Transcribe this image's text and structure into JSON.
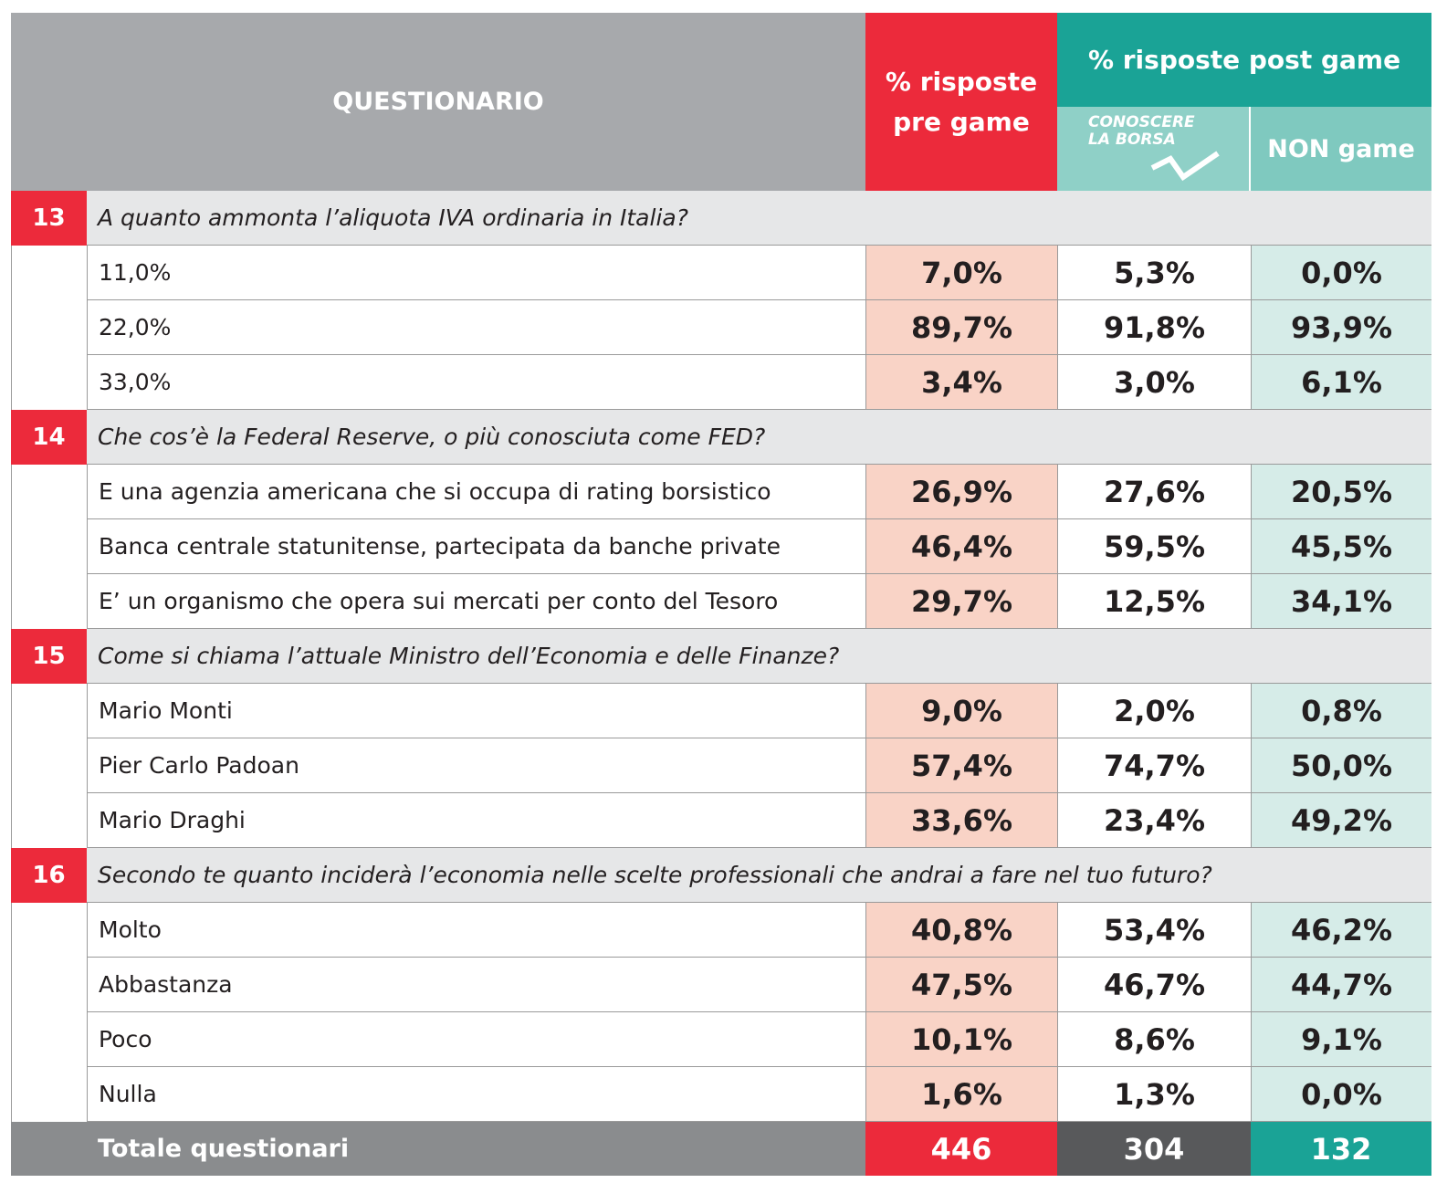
{
  "header": {
    "title": "QUESTIONARIO",
    "pre": "% risposte pre game",
    "post": "% risposte post game",
    "conoscere": [
      "CONOSCERE",
      "LA BORSA"
    ],
    "non": "NON game"
  },
  "questions": [
    {
      "number": "13",
      "text": "A quanto ammonta l’aliquota IVA ordinaria in Italia?",
      "answers": [
        {
          "label": "11,0%",
          "pre": "7,0%",
          "conoscere": "5,3%",
          "non": "0,0%"
        },
        {
          "label": "22,0%",
          "pre": "89,7%",
          "conoscere": "91,8%",
          "non": "93,9%"
        },
        {
          "label": "33,0%",
          "pre": "3,4%",
          "conoscere": "3,0%",
          "non": "6,1%"
        }
      ]
    },
    {
      "number": "14",
      "text": "Che cos’è la Federal Reserve, o più conosciuta come FED?",
      "answers": [
        {
          "label": "E una agenzia americana che si occupa di rating borsistico",
          "pre": "26,9%",
          "conoscere": "27,6%",
          "non": "20,5%"
        },
        {
          "label": "Banca centrale statunitense, partecipata da banche private",
          "pre": "46,4%",
          "conoscere": "59,5%",
          "non": "45,5%"
        },
        {
          "label": "E’ un organismo che opera sui mercati per conto del Tesoro",
          "pre": "29,7%",
          "conoscere": "12,5%",
          "non": "34,1%"
        }
      ]
    },
    {
      "number": "15",
      "text": "Come si chiama l’attuale Ministro dell’Economia e delle Finanze?",
      "answers": [
        {
          "label": "Mario Monti",
          "pre": "9,0%",
          "conoscere": "2,0%",
          "non": "0,8%"
        },
        {
          "label": "Pier Carlo Padoan",
          "pre": "57,4%",
          "conoscere": "74,7%",
          "non": "50,0%"
        },
        {
          "label": "Mario Draghi",
          "pre": "33,6%",
          "conoscere": "23,4%",
          "non": "49,2%"
        }
      ]
    },
    {
      "number": "16",
      "text": "Secondo te quanto inciderà l’economia nelle scelte professionali che andrai a fare nel tuo futuro?",
      "answers": [
        {
          "label": "Molto",
          "pre": "40,8%",
          "conoscere": "53,4%",
          "non": "46,2%"
        },
        {
          "label": "Abbastanza",
          "pre": "47,5%",
          "conoscere": "46,7%",
          "non": "44,7%"
        },
        {
          "label": "Poco",
          "pre": "10,1%",
          "conoscere": "8,6%",
          "non": "9,1%"
        },
        {
          "label": "Nulla",
          "pre": "1,6%",
          "conoscere": "1,3%",
          "non": "0,0%"
        }
      ]
    }
  ],
  "total": {
    "label": "Totale questionari",
    "pre": "446",
    "conoscere": "304",
    "non": "132"
  }
}
